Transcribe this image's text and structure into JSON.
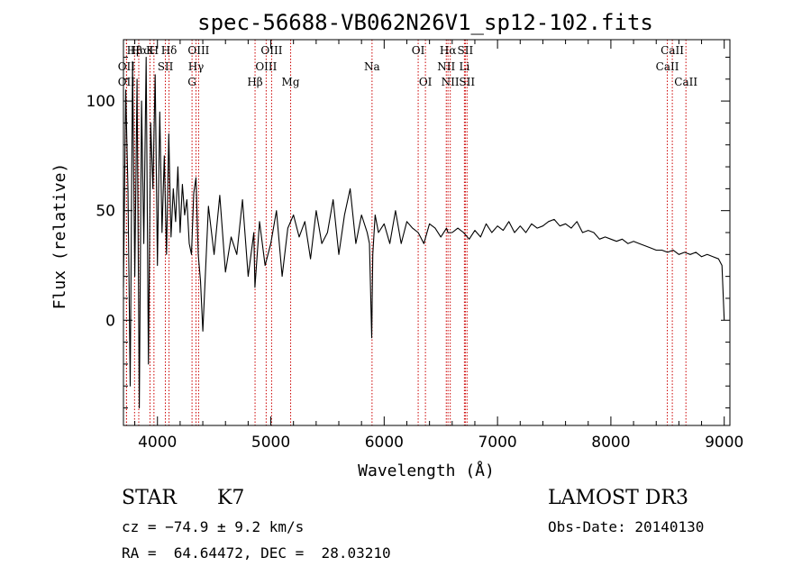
{
  "chart_data": {
    "type": "line",
    "title": "spec-56688-VB062N26V1_sp12-102.fits",
    "xlabel": "Wavelength (Å)",
    "ylabel": "Flux (relative)",
    "xlim": [
      3700,
      9050
    ],
    "ylim": [
      -48,
      128
    ],
    "xticks": [
      4000,
      5000,
      6000,
      7000,
      8000,
      9000
    ],
    "yticks": [
      0,
      50,
      100
    ],
    "x_minor_step": 200,
    "y_minor_step": 10,
    "grid": false,
    "series": [
      {
        "x": [
          3700,
          3720,
          3740,
          3760,
          3780,
          3800,
          3820,
          3840,
          3860,
          3880,
          3900,
          3920,
          3940,
          3960,
          3980,
          4000,
          4020,
          4040,
          4060,
          4080,
          4100,
          4120,
          4140,
          4160,
          4180,
          4200,
          4220,
          4240,
          4260,
          4280,
          4300,
          4320,
          4340,
          4360,
          4380,
          4400,
          4450,
          4500,
          4550,
          4600,
          4650,
          4700,
          4750,
          4800,
          4850,
          4860,
          4900,
          4950,
          5000,
          5050,
          5100,
          5150,
          5200,
          5250,
          5300,
          5350,
          5400,
          5450,
          5500,
          5550,
          5600,
          5650,
          5700,
          5750,
          5800,
          5850,
          5870,
          5890,
          5900,
          5920,
          5950,
          6000,
          6050,
          6100,
          6150,
          6200,
          6250,
          6300,
          6350,
          6400,
          6450,
          6500,
          6550,
          6563,
          6600,
          6650,
          6700,
          6750,
          6800,
          6850,
          6900,
          6950,
          7000,
          7050,
          7100,
          7150,
          7200,
          7250,
          7300,
          7350,
          7400,
          7450,
          7500,
          7550,
          7600,
          7650,
          7700,
          7750,
          7800,
          7850,
          7900,
          7950,
          8000,
          8050,
          8100,
          8150,
          8200,
          8250,
          8300,
          8350,
          8400,
          8450,
          8500,
          8550,
          8600,
          8650,
          8700,
          8750,
          8800,
          8850,
          8900,
          8950,
          8980,
          9000
        ],
        "y": [
          15,
          105,
          60,
          -30,
          118,
          20,
          110,
          -40,
          100,
          35,
          120,
          -20,
          90,
          60,
          112,
          25,
          95,
          40,
          75,
          30,
          85,
          38,
          60,
          45,
          70,
          40,
          62,
          48,
          55,
          35,
          30,
          58,
          65,
          30,
          18,
          -5,
          52,
          30,
          57,
          22,
          38,
          30,
          55,
          20,
          40,
          15,
          45,
          25,
          35,
          50,
          20,
          42,
          48,
          38,
          45,
          28,
          50,
          35,
          40,
          55,
          30,
          48,
          60,
          35,
          48,
          40,
          35,
          -8,
          30,
          48,
          40,
          44,
          35,
          50,
          35,
          45,
          42,
          40,
          35,
          44,
          42,
          38,
          42,
          40,
          40,
          42,
          40,
          37,
          41,
          38,
          44,
          40,
          43,
          41,
          45,
          40,
          43,
          40,
          44,
          42,
          43,
          45,
          46,
          43,
          44,
          42,
          45,
          40,
          41,
          40,
          37,
          38,
          37,
          36,
          37,
          35,
          36,
          35,
          34,
          33,
          32,
          32,
          31,
          32,
          30,
          31,
          30,
          31,
          29,
          30,
          29,
          28,
          25,
          0
        ]
      }
    ],
    "annotations": [
      {
        "label": "Hβ",
        "x": 3798,
        "row": 0
      },
      {
        "label": "OII",
        "x": 3727,
        "row": 1
      },
      {
        "label": "OII",
        "x": 3727,
        "row": 2
      },
      {
        "label": "Hα",
        "x": 3835,
        "row": 0
      },
      {
        "label": "K",
        "x": 3934,
        "row": 0
      },
      {
        "label": "H",
        "x": 3969,
        "row": 0
      },
      {
        "label": "Hδ",
        "x": 4102,
        "row": 0
      },
      {
        "label": "SII",
        "x": 4070,
        "row": 1
      },
      {
        "label": "OIII",
        "x": 4363,
        "row": 0
      },
      {
        "label": "Hγ",
        "x": 4340,
        "row": 1
      },
      {
        "label": "G",
        "x": 4305,
        "row": 2
      },
      {
        "label": "OIII",
        "x": 5007,
        "row": 0
      },
      {
        "label": "OIII",
        "x": 4959,
        "row": 1
      },
      {
        "label": "Hβ",
        "x": 4861,
        "row": 2
      },
      {
        "label": "Mg",
        "x": 5175,
        "row": 2
      },
      {
        "label": "Na",
        "x": 5893,
        "row": 1
      },
      {
        "label": "OI",
        "x": 6300,
        "row": 0
      },
      {
        "label": "OI",
        "x": 6364,
        "row": 2
      },
      {
        "label": "Hα",
        "x": 6563,
        "row": 0
      },
      {
        "label": "SII",
        "x": 6716,
        "row": 0
      },
      {
        "label": "NII",
        "x": 6548,
        "row": 1
      },
      {
        "label": "Li",
        "x": 6708,
        "row": 1
      },
      {
        "label": "NII",
        "x": 6583,
        "row": 2
      },
      {
        "label": "SII",
        "x": 6731,
        "row": 2
      },
      {
        "label": "CaII",
        "x": 8542,
        "row": 0
      },
      {
        "label": "CaII",
        "x": 8498,
        "row": 1
      },
      {
        "label": "CaII",
        "x": 8662,
        "row": 2
      }
    ],
    "line_color": "#000000",
    "marker_color": "#cc0000"
  },
  "info": {
    "class": "STAR",
    "subclass": "K7",
    "survey": "LAMOST DR3",
    "cz": "cz = −74.9 ± 9.2 km/s",
    "obs_date": "Obs-Date: 20140130",
    "coords": "RA =  64.64472, DEC =  28.03210"
  }
}
